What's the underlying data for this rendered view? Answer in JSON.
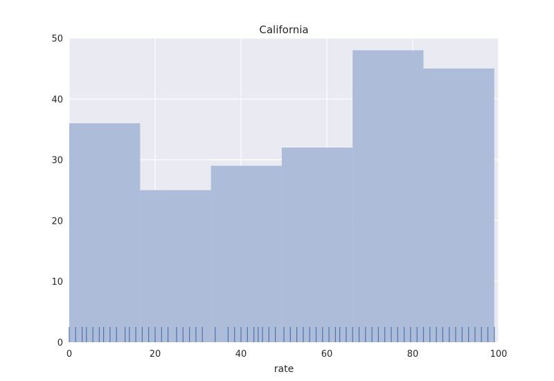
{
  "chart_data": {
    "type": "bar",
    "subtype": "histogram",
    "title": "California",
    "xlabel": "rate",
    "ylabel": "",
    "xlim": [
      0,
      100
    ],
    "ylim": [
      0,
      50
    ],
    "xticks": [
      "0",
      "20",
      "40",
      "60",
      "80",
      "100"
    ],
    "yticks": [
      "0",
      "10",
      "20",
      "30",
      "40",
      "50"
    ],
    "grid": true,
    "bins": [
      {
        "start": 0.0,
        "end": 16.5,
        "value": 36
      },
      {
        "start": 16.5,
        "end": 33.0,
        "value": 25
      },
      {
        "start": 33.0,
        "end": 49.5,
        "value": 29
      },
      {
        "start": 49.5,
        "end": 66.0,
        "value": 32
      },
      {
        "start": 66.0,
        "end": 82.5,
        "value": 48
      },
      {
        "start": 82.5,
        "end": 99.0,
        "value": 45
      }
    ],
    "rug_values": [
      0,
      1.5,
      3,
      4,
      5.5,
      7,
      8,
      9.5,
      11,
      13,
      14,
      15.5,
      17,
      18.5,
      20,
      21.5,
      23,
      25,
      26.5,
      28,
      29.5,
      31,
      34,
      37,
      38.5,
      40,
      41.5,
      43,
      44,
      45,
      46.5,
      48,
      50,
      51.5,
      53,
      54.5,
      56,
      57.5,
      59,
      60.5,
      62,
      63,
      64.5,
      66,
      67.5,
      69,
      70.5,
      72,
      73.5,
      75,
      76.5,
      78,
      79.5,
      81,
      82.5,
      84,
      85.5,
      87,
      88.5,
      90,
      91.5,
      93,
      94.5,
      96,
      97.5,
      99
    ],
    "colors": {
      "bar_fill": "#a9b9d7",
      "rug": "#4c72b0",
      "plot_background": "#eaeaf2",
      "grid": "#ffffff"
    }
  }
}
